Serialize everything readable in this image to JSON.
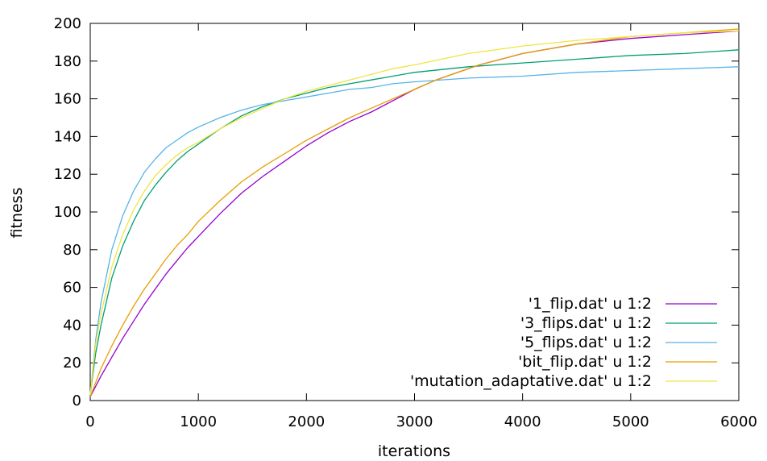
{
  "chart_data": {
    "type": "line",
    "title": "",
    "xlabel": "iterations",
    "ylabel": "fitness",
    "xlim": [
      0,
      6000
    ],
    "ylim": [
      0,
      200
    ],
    "xticks": [
      0,
      1000,
      2000,
      3000,
      4000,
      5000,
      6000
    ],
    "yticks": [
      0,
      20,
      40,
      60,
      80,
      100,
      120,
      140,
      160,
      180,
      200
    ],
    "grid": false,
    "legend_position": "bottom-right",
    "series": [
      {
        "name": "'1_flip.dat' u 1:2",
        "color": "#9400d3",
        "x": [
          0,
          100,
          200,
          300,
          400,
          500,
          600,
          700,
          800,
          900,
          1000,
          1200,
          1400,
          1600,
          1800,
          2000,
          2200,
          2400,
          2600,
          2800,
          3000,
          3200,
          3400,
          3600,
          3800,
          4000,
          4500,
          5000,
          5500,
          6000
        ],
        "y": [
          2,
          13,
          23,
          33,
          42,
          51,
          59,
          67,
          74,
          81,
          87,
          99,
          110,
          119,
          127,
          135,
          142,
          148,
          153,
          159,
          165,
          170,
          174,
          178,
          181,
          184,
          189,
          192,
          194,
          196
        ]
      },
      {
        "name": "'3_flips.dat' u 1:2",
        "color": "#009e73",
        "x": [
          0,
          50,
          100,
          200,
          300,
          400,
          500,
          600,
          700,
          800,
          900,
          1000,
          1200,
          1400,
          1600,
          1800,
          2000,
          2200,
          2400,
          2600,
          2800,
          3000,
          3500,
          4000,
          4500,
          5000,
          5500,
          6000
        ],
        "y": [
          3,
          25,
          40,
          65,
          82,
          95,
          106,
          114,
          121,
          127,
          132,
          136,
          144,
          151,
          156,
          160,
          163,
          166,
          168,
          170,
          172,
          174,
          177,
          179,
          181,
          183,
          184,
          186
        ]
      },
      {
        "name": "'5_flips.dat' u 1:2",
        "color": "#56b4e9",
        "x": [
          0,
          50,
          100,
          200,
          300,
          400,
          500,
          600,
          700,
          800,
          900,
          1000,
          1200,
          1400,
          1600,
          1800,
          2000,
          2200,
          2400,
          2600,
          2800,
          3000,
          3500,
          4000,
          4500,
          5000,
          5500,
          6000
        ],
        "y": [
          3,
          32,
          52,
          80,
          98,
          111,
          121,
          128,
          134,
          138,
          142,
          145,
          150,
          154,
          157,
          159,
          161,
          163,
          165,
          166,
          168,
          169,
          171,
          172,
          174,
          175,
          176,
          177
        ]
      },
      {
        "name": "'bit_flip.dat' u 1:2",
        "color": "#e69f00",
        "x": [
          0,
          100,
          200,
          300,
          400,
          500,
          600,
          700,
          800,
          900,
          1000,
          1200,
          1400,
          1600,
          1800,
          2000,
          2200,
          2400,
          2600,
          2800,
          3000,
          3200,
          3400,
          3600,
          3800,
          4000,
          4500,
          5000,
          5500,
          6000
        ],
        "y": [
          2,
          17,
          29,
          40,
          50,
          59,
          67,
          75,
          82,
          88,
          95,
          106,
          116,
          124,
          131,
          138,
          144,
          150,
          155,
          160,
          165,
          170,
          174,
          178,
          181,
          184,
          189,
          193,
          195,
          197
        ]
      },
      {
        "name": "'mutation_adaptative.dat' u 1:2",
        "color": "#f0e442",
        "x": [
          0,
          50,
          100,
          200,
          300,
          400,
          500,
          600,
          700,
          800,
          900,
          1000,
          1200,
          1400,
          1600,
          1800,
          2000,
          2200,
          2400,
          2600,
          2800,
          3000,
          3500,
          4000,
          4500,
          5000,
          5500,
          6000
        ],
        "y": [
          3,
          30,
          46,
          71,
          88,
          101,
          111,
          119,
          125,
          130,
          134,
          137,
          144,
          150,
          155,
          160,
          164,
          167,
          170,
          173,
          176,
          178,
          184,
          188,
          191,
          193,
          195,
          196
        ]
      }
    ]
  }
}
